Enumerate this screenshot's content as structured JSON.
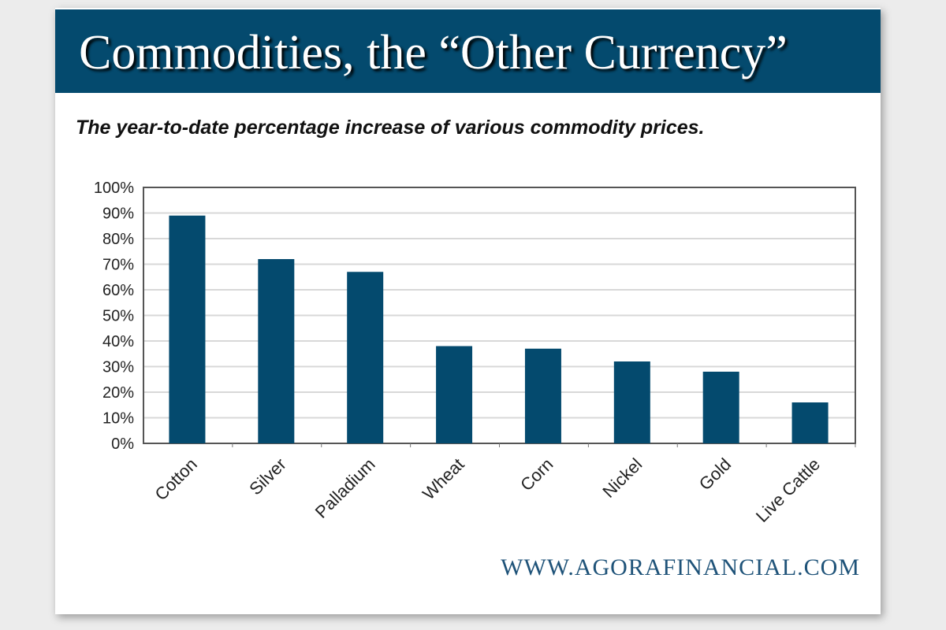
{
  "chart_data": {
    "type": "bar",
    "title": "Commodities, the “Other Currency”",
    "subtitle": "The year-to-date percentage increase of various commodity prices.",
    "categories": [
      "Cotton",
      "Silver",
      "Palladium",
      "Wheat",
      "Corn",
      "Nickel",
      "Gold",
      "Live Cattle"
    ],
    "values": [
      89,
      72,
      67,
      38,
      37,
      32,
      28,
      16
    ],
    "ylim": [
      0,
      100
    ],
    "yticks": [
      "0%",
      "10%",
      "20%",
      "30%",
      "40%",
      "50%",
      "60%",
      "70%",
      "80%",
      "90%",
      "100%"
    ],
    "xlabel": "",
    "ylabel": "",
    "grid": true,
    "bar_color": "#044a6e",
    "source": "WWW.AGORAFINANCIAL.COM"
  }
}
